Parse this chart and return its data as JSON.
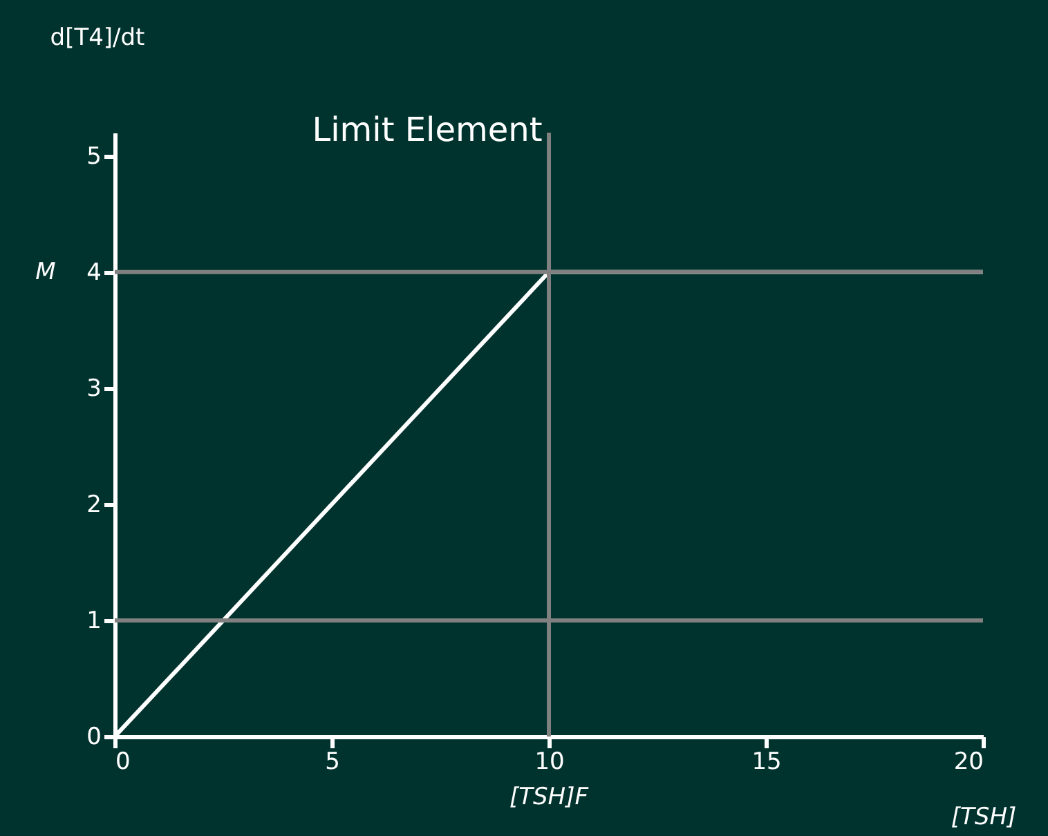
{
  "chart_data": {
    "type": "line",
    "title": "Limit Element",
    "ylabel": "d[T4]/dt",
    "xlabel": "[TSH]",
    "x": [
      0,
      10,
      20
    ],
    "series": [
      {
        "color": "#ffffff",
        "values": [
          0,
          4,
          4
        ]
      }
    ],
    "xlim": [
      0,
      20
    ],
    "xticks": [
      0,
      5,
      10,
      15,
      20
    ],
    "ylim": [
      0,
      5.2
    ],
    "yticks": [
      0,
      1,
      2,
      3,
      4,
      5
    ],
    "ref_lines": [
      {
        "axis": "y",
        "value": 4,
        "label": "M",
        "color": "#808080"
      },
      {
        "axis": "y",
        "value": 1,
        "label": null,
        "color": "#808080"
      },
      {
        "axis": "x",
        "value": 10,
        "label": "[TSH]F",
        "color": "#808080"
      }
    ]
  }
}
